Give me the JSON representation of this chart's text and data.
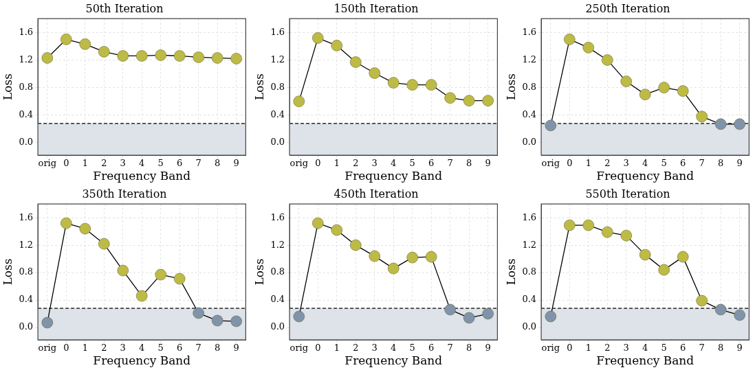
{
  "chart_data": [
    {
      "type": "line",
      "title": "50th Iteration",
      "xlabel": "Frequency Band",
      "ylabel": "Loss",
      "categories": [
        "orig",
        "0",
        "1",
        "2",
        "3",
        "4",
        "5",
        "6",
        "7",
        "8",
        "9"
      ],
      "series": [
        {
          "color": "#000000",
          "colors": [
            "#bdbb45",
            "#bdbb45",
            "#bdbb45",
            "#bdbb45",
            "#bdbb45",
            "#bdbb45",
            "#bdbb45",
            "#bdbb45",
            "#bdbb45",
            "#bdbb45",
            "#bdbb45"
          ],
          "values": [
            1.23,
            1.5,
            1.43,
            1.32,
            1.26,
            1.26,
            1.27,
            1.26,
            1.24,
            1.23,
            1.22
          ]
        }
      ],
      "ylim": [
        -0.18,
        1.8
      ],
      "yticks": [
        {
          "value": 0,
          "label": "0.0"
        },
        {
          "value": 0.4,
          "label": "0.4"
        },
        {
          "value": 0.8,
          "label": "0.8"
        },
        {
          "value": 1.2,
          "label": "1.2"
        },
        {
          "value": 1.6,
          "label": "1.6"
        }
      ],
      "ref_lines": [
        {
          "axis": "y",
          "value": 0.28,
          "color": "#000000",
          "line_style": "dashed"
        }
      ],
      "bands": [
        {
          "axis": "y",
          "from": -0.18,
          "to": 0.28,
          "color": "#dde3e8"
        }
      ],
      "grid": true,
      "marker": "circle",
      "line_style": "solid"
    },
    {
      "type": "line",
      "title": "150th Iteration",
      "xlabel": "Frequency Band",
      "ylabel": "Loss",
      "categories": [
        "orig",
        "0",
        "1",
        "2",
        "3",
        "4",
        "5",
        "6",
        "7",
        "8",
        "9"
      ],
      "series": [
        {
          "color": "#000000",
          "colors": [
            "#bdbb45",
            "#bdbb45",
            "#bdbb45",
            "#bdbb45",
            "#bdbb45",
            "#bdbb45",
            "#bdbb45",
            "#bdbb45",
            "#bdbb45",
            "#bdbb45",
            "#bdbb45"
          ],
          "values": [
            0.6,
            1.52,
            1.41,
            1.17,
            1.01,
            0.87,
            0.84,
            0.84,
            0.65,
            0.61,
            0.61
          ]
        }
      ],
      "ylim": [
        -0.18,
        1.8
      ],
      "yticks": [
        {
          "value": 0,
          "label": "0.0"
        },
        {
          "value": 0.4,
          "label": "0.4"
        },
        {
          "value": 0.8,
          "label": "0.8"
        },
        {
          "value": 1.2,
          "label": "1.2"
        },
        {
          "value": 1.6,
          "label": "1.6"
        }
      ],
      "ref_lines": [
        {
          "axis": "y",
          "value": 0.28,
          "color": "#000000",
          "line_style": "dashed"
        }
      ],
      "bands": [
        {
          "axis": "y",
          "from": -0.18,
          "to": 0.28,
          "color": "#dde3e8"
        }
      ],
      "grid": true,
      "marker": "circle",
      "line_style": "solid"
    },
    {
      "type": "line",
      "title": "250th Iteration",
      "xlabel": "Frequency Band",
      "ylabel": "Loss",
      "categories": [
        "orig",
        "0",
        "1",
        "2",
        "3",
        "4",
        "5",
        "6",
        "7",
        "8",
        "9"
      ],
      "series": [
        {
          "color": "#000000",
          "colors": [
            "#7f93ab",
            "#bdbb45",
            "#bdbb45",
            "#bdbb45",
            "#bdbb45",
            "#bdbb45",
            "#bdbb45",
            "#bdbb45",
            "#bdbb45",
            "#7f93ab",
            "#7f93ab"
          ],
          "values": [
            0.25,
            1.5,
            1.38,
            1.2,
            0.89,
            0.7,
            0.8,
            0.75,
            0.38,
            0.27,
            0.27
          ]
        }
      ],
      "ylim": [
        -0.18,
        1.8
      ],
      "yticks": [
        {
          "value": 0,
          "label": "0.0"
        },
        {
          "value": 0.4,
          "label": "0.4"
        },
        {
          "value": 0.8,
          "label": "0.8"
        },
        {
          "value": 1.2,
          "label": "1.2"
        },
        {
          "value": 1.6,
          "label": "1.6"
        }
      ],
      "ref_lines": [
        {
          "axis": "y",
          "value": 0.28,
          "color": "#000000",
          "line_style": "dashed"
        }
      ],
      "bands": [
        {
          "axis": "y",
          "from": -0.18,
          "to": 0.28,
          "color": "#dde3e8"
        }
      ],
      "grid": true,
      "marker": "circle",
      "line_style": "solid"
    },
    {
      "type": "line",
      "title": "350th Iteration",
      "xlabel": "Frequency Band",
      "ylabel": "Loss",
      "categories": [
        "orig",
        "0",
        "1",
        "2",
        "3",
        "4",
        "5",
        "6",
        "7",
        "8",
        "9"
      ],
      "series": [
        {
          "color": "#000000",
          "colors": [
            "#7f93ab",
            "#bdbb45",
            "#bdbb45",
            "#bdbb45",
            "#bdbb45",
            "#bdbb45",
            "#bdbb45",
            "#bdbb45",
            "#7f93ab",
            "#7f93ab",
            "#7f93ab"
          ],
          "values": [
            0.07,
            1.52,
            1.44,
            1.22,
            0.83,
            0.46,
            0.77,
            0.71,
            0.21,
            0.1,
            0.09
          ]
        }
      ],
      "ylim": [
        -0.18,
        1.8
      ],
      "yticks": [
        {
          "value": 0,
          "label": "0.0"
        },
        {
          "value": 0.4,
          "label": "0.4"
        },
        {
          "value": 0.8,
          "label": "0.8"
        },
        {
          "value": 1.2,
          "label": "1.2"
        },
        {
          "value": 1.6,
          "label": "1.6"
        }
      ],
      "ref_lines": [
        {
          "axis": "y",
          "value": 0.28,
          "color": "#000000",
          "line_style": "dashed"
        }
      ],
      "bands": [
        {
          "axis": "y",
          "from": -0.18,
          "to": 0.28,
          "color": "#dde3e8"
        }
      ],
      "grid": true,
      "marker": "circle",
      "line_style": "solid"
    },
    {
      "type": "line",
      "title": "450th Iteration",
      "xlabel": "Frequency Band",
      "ylabel": "Loss",
      "categories": [
        "orig",
        "0",
        "1",
        "2",
        "3",
        "4",
        "5",
        "6",
        "7",
        "8",
        "9"
      ],
      "series": [
        {
          "color": "#000000",
          "colors": [
            "#7f93ab",
            "#bdbb45",
            "#bdbb45",
            "#bdbb45",
            "#bdbb45",
            "#bdbb45",
            "#bdbb45",
            "#bdbb45",
            "#7f93ab",
            "#7f93ab",
            "#7f93ab"
          ],
          "values": [
            0.16,
            1.52,
            1.42,
            1.2,
            1.04,
            0.86,
            1.02,
            1.03,
            0.26,
            0.14,
            0.2
          ]
        }
      ],
      "ylim": [
        -0.18,
        1.8
      ],
      "yticks": [
        {
          "value": 0,
          "label": "0.0"
        },
        {
          "value": 0.4,
          "label": "0.4"
        },
        {
          "value": 0.8,
          "label": "0.8"
        },
        {
          "value": 1.2,
          "label": "1.2"
        },
        {
          "value": 1.6,
          "label": "1.6"
        }
      ],
      "ref_lines": [
        {
          "axis": "y",
          "value": 0.28,
          "color": "#000000",
          "line_style": "dashed"
        }
      ],
      "bands": [
        {
          "axis": "y",
          "from": -0.18,
          "to": 0.28,
          "color": "#dde3e8"
        }
      ],
      "grid": true,
      "marker": "circle",
      "line_style": "solid"
    },
    {
      "type": "line",
      "title": "550th Iteration",
      "xlabel": "Frequency Band",
      "ylabel": "Loss",
      "categories": [
        "orig",
        "0",
        "1",
        "2",
        "3",
        "4",
        "5",
        "6",
        "7",
        "8",
        "9"
      ],
      "series": [
        {
          "color": "#000000",
          "colors": [
            "#7f93ab",
            "#bdbb45",
            "#bdbb45",
            "#bdbb45",
            "#bdbb45",
            "#bdbb45",
            "#bdbb45",
            "#bdbb45",
            "#bdbb45",
            "#7f93ab",
            "#7f93ab"
          ],
          "values": [
            0.16,
            1.49,
            1.49,
            1.39,
            1.34,
            1.06,
            0.84,
            1.03,
            0.39,
            0.26,
            0.18
          ]
        }
      ],
      "ylim": [
        -0.18,
        1.8
      ],
      "yticks": [
        {
          "value": 0,
          "label": "0.0"
        },
        {
          "value": 0.4,
          "label": "0.4"
        },
        {
          "value": 0.8,
          "label": "0.8"
        },
        {
          "value": 1.2,
          "label": "1.2"
        },
        {
          "value": 1.6,
          "label": "1.6"
        }
      ],
      "ref_lines": [
        {
          "axis": "y",
          "value": 0.28,
          "color": "#000000",
          "line_style": "dashed"
        }
      ],
      "bands": [
        {
          "axis": "y",
          "from": -0.18,
          "to": 0.28,
          "color": "#dde3e8"
        }
      ],
      "grid": true,
      "marker": "circle",
      "line_style": "solid"
    }
  ]
}
